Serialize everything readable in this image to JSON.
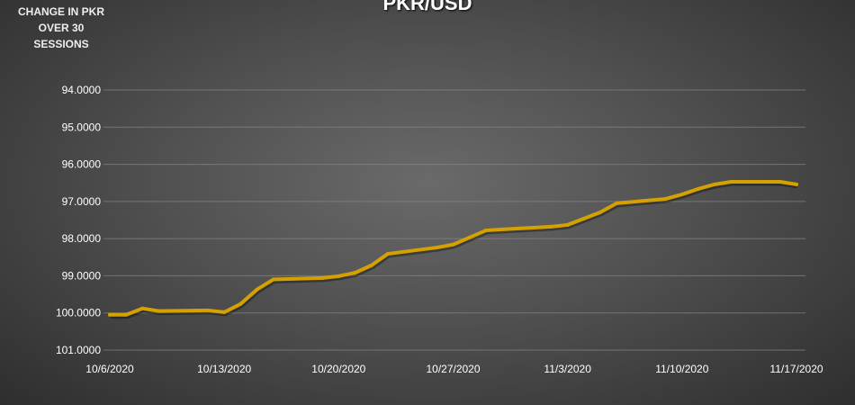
{
  "chart_data": {
    "type": "line",
    "title": "PKR/USD",
    "annotation": "CHANGE IN PKR OVER 30 SESSIONS",
    "xlabel": "",
    "ylabel": "",
    "y_inverted": true,
    "ylim": [
      94,
      101
    ],
    "y_ticks": [
      "94.0000",
      "95.0000",
      "96.0000",
      "97.0000",
      "98.0000",
      "99.0000",
      "100.0000",
      "101.0000"
    ],
    "x_ticks": [
      "10/6/2020",
      "10/13/2020",
      "10/20/2020",
      "10/27/2020",
      "11/3/2020",
      "11/10/2020",
      "11/17/2020"
    ],
    "grid": true,
    "line_color": "#d4a100",
    "x": [
      "2020-10-06",
      "2020-10-07",
      "2020-10-08",
      "2020-10-09",
      "2020-10-12",
      "2020-10-13",
      "2020-10-14",
      "2020-10-15",
      "2020-10-16",
      "2020-10-19",
      "2020-10-20",
      "2020-10-21",
      "2020-10-22",
      "2020-10-23",
      "2020-10-26",
      "2020-10-27",
      "2020-10-28",
      "2020-10-29",
      "2020-10-30",
      "2020-11-02",
      "2020-11-03",
      "2020-11-04",
      "2020-11-05",
      "2020-11-06",
      "2020-11-09",
      "2020-11-10",
      "2020-11-11",
      "2020-11-12",
      "2020-11-13",
      "2020-11-16",
      "2020-11-17"
    ],
    "values": [
      100.05,
      100.05,
      99.88,
      99.95,
      99.93,
      99.98,
      99.76,
      99.37,
      99.1,
      99.06,
      99.01,
      98.92,
      98.72,
      98.41,
      98.24,
      98.16,
      97.97,
      97.78,
      97.75,
      97.68,
      97.63,
      97.46,
      97.29,
      97.05,
      96.93,
      96.81,
      96.66,
      96.54,
      96.47,
      96.47,
      96.54
    ]
  }
}
